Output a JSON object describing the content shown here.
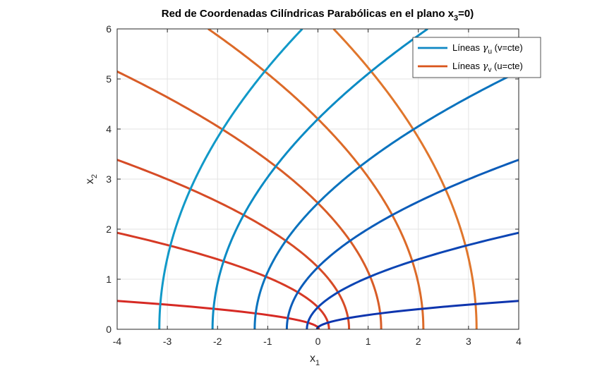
{
  "chart_data": {
    "type": "line",
    "title": {
      "main": "Red de Coordenadas Cilíndricas Parabólicas en el plano x",
      "sub": "3",
      "tail": "=0)"
    },
    "xlabel": {
      "main": "x",
      "sub": "1"
    },
    "ylabel": {
      "main": "x",
      "sub": "2"
    },
    "xlim": [
      -4,
      4
    ],
    "ylim": [
      0,
      6
    ],
    "xticks": [
      "-4",
      "-3",
      "-2",
      "-1",
      "0",
      "1",
      "2",
      "3",
      "4"
    ],
    "yticks": [
      "0",
      "1",
      "2",
      "3",
      "4",
      "5",
      "6"
    ],
    "grid": true,
    "legend_position": "top-right",
    "legend": [
      {
        "symbol": "γ",
        "label_pre": "Líneas ",
        "sub": "u",
        "label_post": " (v=cte)",
        "color": "#0E87C4"
      },
      {
        "symbol": "γ",
        "label_pre": "Líneas ",
        "sub": "v",
        "label_post": " (u=cte)",
        "color": "#D95319"
      }
    ],
    "gamma_u_curves": [
      {
        "vertex_x1": -3.16,
        "color": "#1199C8"
      },
      {
        "vertex_x1": -2.1,
        "color": "#0C8BC4"
      },
      {
        "vertex_x1": -1.26,
        "color": "#0A73BE"
      },
      {
        "vertex_x1": -0.62,
        "color": "#0B5CB9"
      },
      {
        "vertex_x1": -0.22,
        "color": "#0C45B4"
      },
      {
        "vertex_x1": -0.02,
        "color": "#0E35AE"
      }
    ],
    "gamma_v_curves": [
      {
        "vertex_x1": 3.16,
        "color": "#E0762C"
      },
      {
        "vertex_x1": 2.1,
        "color": "#DC6A28"
      },
      {
        "vertex_x1": 1.26,
        "color": "#D85C27"
      },
      {
        "vertex_x1": 0.62,
        "color": "#D64B26"
      },
      {
        "vertex_x1": 0.22,
        "color": "#D63A25"
      },
      {
        "vertex_x1": 0.02,
        "color": "#D62A24"
      }
    ]
  }
}
